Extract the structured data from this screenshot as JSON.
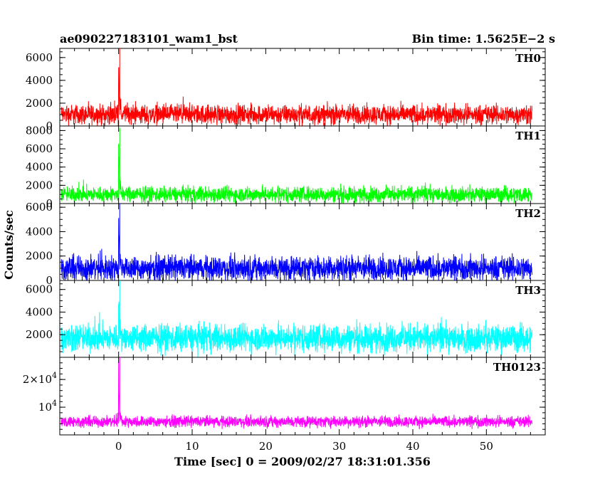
{
  "header": {
    "title": "ae090227183101_wam1_bst",
    "bin_time": "Bin time: 1.5625E−2 s"
  },
  "chart_data": {
    "type": "line",
    "xlabel": "Time [sec] 0 = 2009/02/27 18:31:01.356",
    "ylabel": "Counts/sec",
    "xlim": [
      -8,
      58
    ],
    "xticks": [
      0,
      10,
      20,
      30,
      40,
      50
    ],
    "x_range_data": [
      -7.8,
      56.2
    ],
    "grid": false,
    "panels": [
      {
        "name": "TH0",
        "color": "#ff0000",
        "ylim": [
          0,
          6800
        ],
        "yticks": [
          0,
          2000,
          4000,
          6000
        ],
        "baseline": 1000,
        "noise": 850,
        "peak": {
          "x": 0.15,
          "y": 6800
        },
        "tick_labels": [
          "0",
          "2000",
          "4000",
          "6000"
        ]
      },
      {
        "name": "TH1",
        "color": "#00ff00",
        "ylim": [
          0,
          8500
        ],
        "yticks": [
          0,
          2000,
          4000,
          6000,
          8000
        ],
        "baseline": 1000,
        "noise": 850,
        "peak": {
          "x": 0.15,
          "y": 8300
        },
        "tick_labels": [
          "0",
          "2000",
          "4000",
          "6000",
          "8000"
        ]
      },
      {
        "name": "TH2",
        "color": "#0000ff",
        "ylim": [
          0,
          6300
        ],
        "yticks": [
          0,
          2000,
          4000,
          6000
        ],
        "baseline": 1000,
        "noise": 1000,
        "peak": {
          "x": 0.15,
          "y": 6300
        },
        "tick_labels": [
          "0",
          "2000",
          "4000",
          "6000"
        ]
      },
      {
        "name": "TH3",
        "color": "#00ffff",
        "ylim": [
          0,
          6800
        ],
        "yticks": [
          2000,
          4000,
          6000
        ],
        "baseline": 1700,
        "noise": 1200,
        "peak": {
          "x": 0.15,
          "y": 6800
        },
        "tick_labels": [
          "2000",
          "4000",
          "6000"
        ]
      },
      {
        "name": "TH0123",
        "color": "#ff00ff",
        "ylim": [
          0,
          28000
        ],
        "yticks": [
          10000,
          20000
        ],
        "baseline": 4800,
        "noise": 2000,
        "peak": {
          "x": 0.15,
          "y": 28000
        },
        "tick_labels": [
          "10",
          "2×10"
        ],
        "tick_exponents": [
          "4",
          "4"
        ]
      }
    ]
  }
}
